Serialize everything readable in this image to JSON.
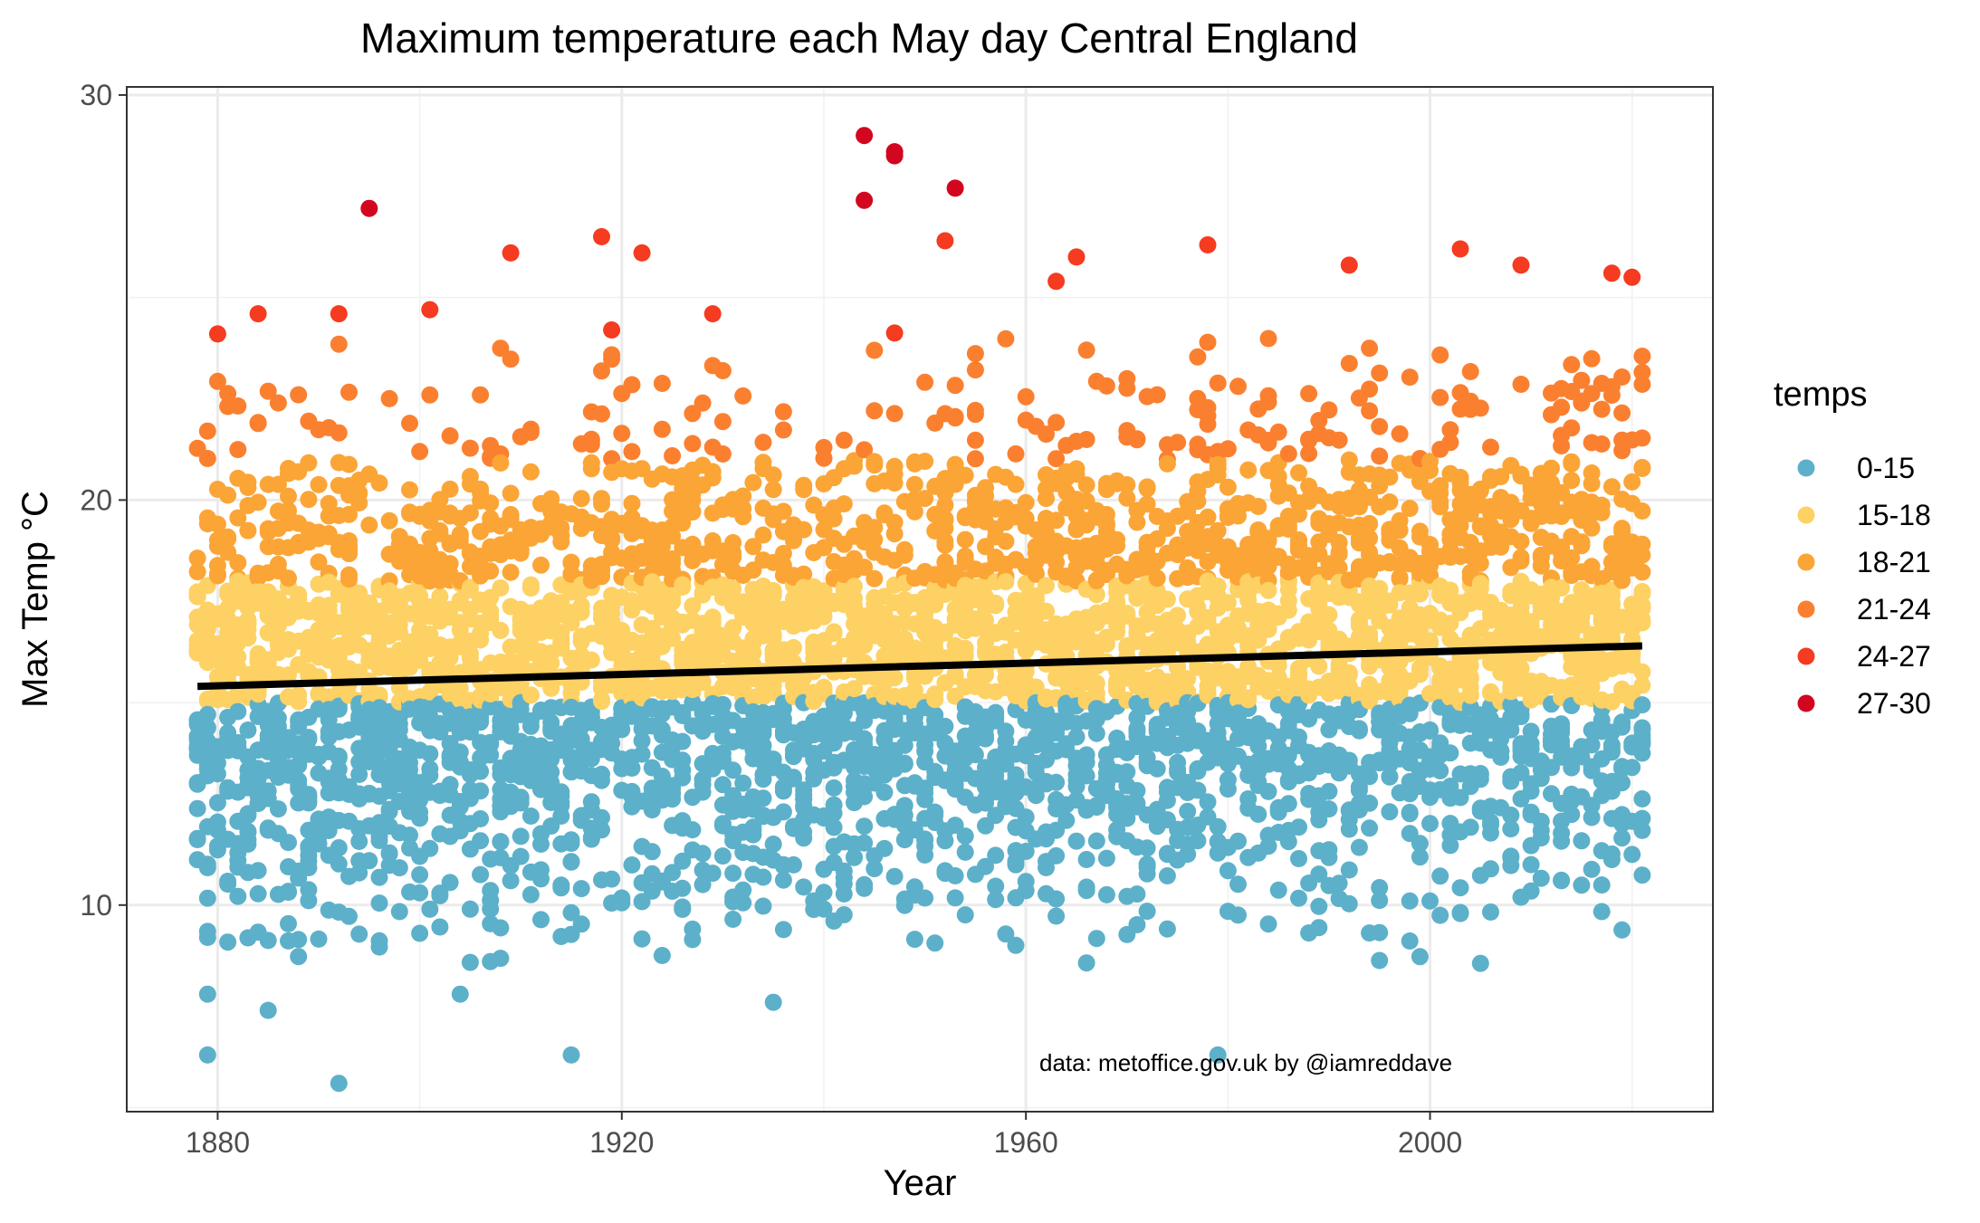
{
  "chart_data": {
    "type": "scatter",
    "title": "Maximum temperature each May day Central England",
    "xlabel": "Year",
    "ylabel": "Max Temp °C",
    "xlim": [
      1871,
      2028
    ],
    "ylim": [
      4.9,
      30.2
    ],
    "x_ticks": [
      1880,
      1920,
      1960,
      2000
    ],
    "y_ticks": [
      10,
      20,
      30
    ],
    "grid": true,
    "caption": "data: metoffice.gov.uk by @iamreddave",
    "legend": {
      "title": "temps",
      "placement": "right",
      "entries": [
        {
          "label": "0-15",
          "color": "#5db0c9"
        },
        {
          "label": "15-18",
          "color": "#fdd163"
        },
        {
          "label": "18-21",
          "color": "#fba537"
        },
        {
          "label": "21-24",
          "color": "#fa8030"
        },
        {
          "label": "24-27",
          "color": "#f53b20"
        },
        {
          "label": "27-30",
          "color": "#d2071f"
        }
      ]
    },
    "year_range": [
      1878,
      2021
    ],
    "days_per_year": 31,
    "trend_line": {
      "x": [
        1878,
        2021
      ],
      "y": [
        15.4,
        16.4
      ],
      "color": "#000000"
    },
    "highlighted_points": [
      {
        "x": 1879,
        "y": 6.3
      },
      {
        "x": 1892,
        "y": 5.6
      },
      {
        "x": 1915,
        "y": 6.3
      },
      {
        "x": 1979,
        "y": 6.3
      },
      {
        "x": 1879,
        "y": 7.8
      },
      {
        "x": 1885,
        "y": 7.4
      },
      {
        "x": 1904,
        "y": 7.8
      },
      {
        "x": 1935,
        "y": 7.6
      },
      {
        "x": 1895,
        "y": 27.2
      },
      {
        "x": 1944,
        "y": 29.0
      },
      {
        "x": 1944,
        "y": 27.4
      },
      {
        "x": 1947,
        "y": 28.6
      },
      {
        "x": 1947,
        "y": 28.5
      },
      {
        "x": 1953,
        "y": 27.7
      },
      {
        "x": 1918,
        "y": 26.5
      },
      {
        "x": 1922,
        "y": 26.1
      },
      {
        "x": 1909,
        "y": 26.1
      },
      {
        "x": 1978,
        "y": 26.3
      },
      {
        "x": 1952,
        "y": 26.4
      },
      {
        "x": 1965,
        "y": 26.0
      },
      {
        "x": 2003,
        "y": 26.2
      },
      {
        "x": 1880,
        "y": 24.1
      },
      {
        "x": 1884,
        "y": 24.6
      },
      {
        "x": 1892,
        "y": 24.6
      },
      {
        "x": 1901,
        "y": 24.7
      },
      {
        "x": 1929,
        "y": 24.6
      },
      {
        "x": 1963,
        "y": 25.4
      },
      {
        "x": 1992,
        "y": 25.8
      },
      {
        "x": 2009,
        "y": 25.8
      },
      {
        "x": 2018,
        "y": 25.6
      },
      {
        "x": 2020,
        "y": 25.5
      }
    ]
  }
}
